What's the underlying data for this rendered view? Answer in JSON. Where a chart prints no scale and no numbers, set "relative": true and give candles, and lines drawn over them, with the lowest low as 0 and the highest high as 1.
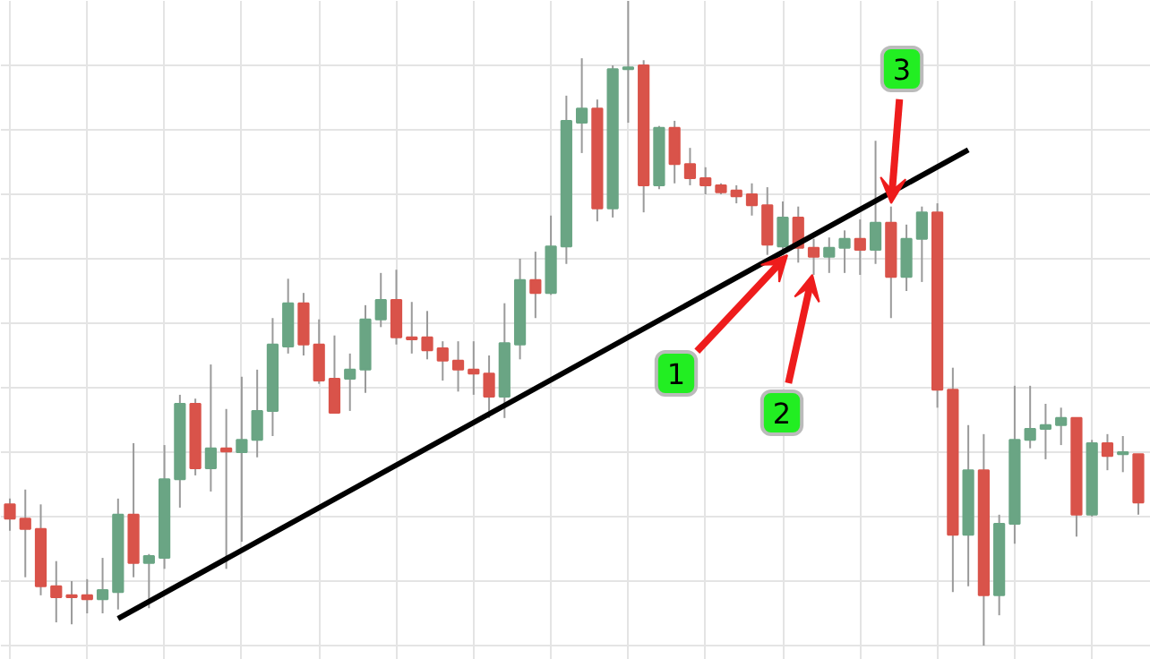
{
  "chart_data": {
    "type": "candlestick",
    "relative": true,
    "grid": true,
    "categories": [
      null,
      null,
      null,
      null,
      null,
      null,
      null,
      null,
      null,
      null,
      null,
      null,
      null,
      null,
      null,
      null,
      null,
      null,
      null,
      null,
      null,
      null,
      null,
      null,
      null,
      null,
      null,
      null,
      null,
      null,
      null,
      null,
      null,
      null,
      null,
      null,
      null,
      null,
      null,
      null,
      null,
      null,
      null,
      null,
      null,
      null,
      null,
      null,
      null,
      null,
      null,
      null,
      null,
      null,
      null,
      null,
      null,
      null,
      null,
      null,
      null,
      null,
      null,
      null,
      null,
      null,
      null,
      null,
      null,
      null,
      null,
      null,
      null,
      null
    ],
    "ohlc": [
      [
        0.219,
        0.228,
        0.178,
        0.197
      ],
      [
        0.197,
        0.242,
        0.106,
        0.181
      ],
      [
        0.181,
        0.219,
        0.078,
        0.092
      ],
      [
        0.092,
        0.131,
        0.036,
        0.075
      ],
      [
        0.078,
        0.1,
        0.033,
        0.075
      ],
      [
        0.078,
        0.103,
        0.05,
        0.072
      ],
      [
        0.072,
        0.136,
        0.05,
        0.086
      ],
      [
        0.083,
        0.228,
        0.056,
        0.203
      ],
      [
        0.203,
        0.314,
        0.106,
        0.128
      ],
      [
        0.128,
        0.142,
        0.058,
        0.139
      ],
      [
        0.136,
        0.311,
        0.119,
        0.258
      ],
      [
        0.258,
        0.389,
        0.214,
        0.375
      ],
      [
        0.375,
        0.383,
        0.264,
        0.275
      ],
      [
        0.275,
        0.436,
        0.239,
        0.306
      ],
      [
        0.306,
        0.367,
        0.119,
        0.301
      ],
      [
        0.3,
        0.417,
        0.161,
        0.319
      ],
      [
        0.319,
        0.428,
        0.292,
        0.364
      ],
      [
        0.364,
        0.508,
        0.325,
        0.467
      ],
      [
        0.464,
        0.569,
        0.453,
        0.531
      ],
      [
        0.531,
        0.547,
        0.45,
        0.467
      ],
      [
        0.467,
        0.506,
        0.406,
        0.411
      ],
      [
        0.414,
        0.481,
        0.361,
        0.361
      ],
      [
        0.414,
        0.453,
        0.364,
        0.428
      ],
      [
        0.428,
        0.528,
        0.392,
        0.506
      ],
      [
        0.506,
        0.578,
        0.494,
        0.536
      ],
      [
        0.536,
        0.583,
        0.467,
        0.478
      ],
      [
        0.478,
        0.533,
        0.453,
        0.475
      ],
      [
        0.478,
        0.519,
        0.444,
        0.458
      ],
      [
        0.461,
        0.472,
        0.411,
        0.442
      ],
      [
        0.442,
        0.472,
        0.394,
        0.428
      ],
      [
        0.428,
        0.472,
        0.389,
        0.422
      ],
      [
        0.422,
        0.45,
        0.353,
        0.386
      ],
      [
        0.386,
        0.531,
        0.353,
        0.469
      ],
      [
        0.467,
        0.6,
        0.444,
        0.567
      ],
      [
        0.567,
        0.611,
        0.508,
        0.547
      ],
      [
        0.547,
        0.667,
        0.544,
        0.619
      ],
      [
        0.619,
        0.853,
        0.592,
        0.814
      ],
      [
        0.811,
        0.911,
        0.764,
        0.833
      ],
      [
        0.833,
        0.847,
        0.658,
        0.678
      ],
      [
        0.678,
        0.9,
        0.664,
        0.894
      ],
      [
        0.894,
        1,
        0.811,
        0.897
      ],
      [
        0.9,
        0.908,
        0.672,
        0.714
      ],
      [
        0.714,
        0.806,
        0.708,
        0.803
      ],
      [
        0.803,
        0.814,
        0.717,
        0.747
      ],
      [
        0.747,
        0.772,
        0.714,
        0.725
      ],
      [
        0.725,
        0.742,
        0.7,
        0.714
      ],
      [
        0.714,
        0.717,
        0.7,
        0.703
      ],
      [
        0.706,
        0.714,
        0.686,
        0.697
      ],
      [
        0.7,
        0.717,
        0.667,
        0.683
      ],
      [
        0.683,
        0.711,
        0.606,
        0.622
      ],
      [
        0.619,
        0.689,
        0.606,
        0.664
      ],
      [
        0.664,
        0.681,
        0.594,
        0.617
      ],
      [
        0.617,
        0.631,
        0.575,
        0.603
      ],
      [
        0.603,
        0.633,
        0.578,
        0.617
      ],
      [
        0.617,
        0.644,
        0.578,
        0.631
      ],
      [
        0.631,
        0.661,
        0.575,
        0.614
      ],
      [
        0.614,
        0.783,
        0.592,
        0.656
      ],
      [
        0.656,
        0.681,
        0.508,
        0.572
      ],
      [
        0.572,
        0.653,
        0.55,
        0.631
      ],
      [
        0.631,
        0.681,
        0.564,
        0.672
      ],
      [
        0.672,
        0.686,
        0.369,
        0.397
      ],
      [
        0.397,
        0.431,
        0.083,
        0.172
      ],
      [
        0.172,
        0.342,
        0.092,
        0.272
      ],
      [
        0.272,
        0.328,
        0,
        0.078
      ],
      [
        0.078,
        0.203,
        0.047,
        0.189
      ],
      [
        0.189,
        0.403,
        0.158,
        0.319
      ],
      [
        0.319,
        0.403,
        0.306,
        0.336
      ],
      [
        0.336,
        0.375,
        0.289,
        0.342
      ],
      [
        0.342,
        0.369,
        0.311,
        0.353
      ],
      [
        0.353,
        0.353,
        0.169,
        0.203
      ],
      [
        0.203,
        0.319,
        0.2,
        0.314
      ],
      [
        0.314,
        0.328,
        0.272,
        0.294
      ],
      [
        0.297,
        0.325,
        0.269,
        0.3
      ],
      [
        0.297,
        0.297,
        0.203,
        0.222
      ]
    ],
    "colors": [
      "#d9534a",
      "#d9534a",
      "#d9534a",
      "#d9534a",
      "#d9534a",
      "#d9534a",
      "#6aa584",
      "#6aa584",
      "#d9534a",
      "#6aa584",
      "#6aa584",
      "#6aa584",
      "#d9534a",
      "#6aa584",
      "#d9534a",
      "#6aa584",
      "#6aa584",
      "#6aa584",
      "#6aa584",
      "#d9534a",
      "#d9534a",
      "#d9534a",
      "#6aa584",
      "#6aa584",
      "#6aa584",
      "#d9534a",
      "#d9534a",
      "#d9534a",
      "#d9534a",
      "#d9534a",
      "#d9534a",
      "#d9534a",
      "#6aa584",
      "#6aa584",
      "#d9534a",
      "#6aa584",
      "#6aa584",
      "#6aa584",
      "#d9534a",
      "#6aa584",
      "#6aa584",
      "#d9534a",
      "#6aa584",
      "#d9534a",
      "#d9534a",
      "#d9534a",
      "#d9534a",
      "#d9534a",
      "#d9534a",
      "#d9534a",
      "#6aa584",
      "#d9534a",
      "#d9534a",
      "#6aa584",
      "#6aa584",
      "#d9534a",
      "#6aa584",
      "#d9534a",
      "#6aa584",
      "#6aa584",
      "#d9534a",
      "#d9534a",
      "#6aa584",
      "#d9534a",
      "#6aa584",
      "#6aa584",
      "#6aa584",
      "#6aa584",
      "#6aa584",
      "#d9534a",
      "#6aa584",
      "#d9534a",
      "#6aa584",
      "#d9534a"
    ],
    "series": [
      {
        "type": "line",
        "values": [
          null,
          null,
          null,
          null,
          null,
          null,
          null,
          0.042,
          null,
          null,
          null,
          null,
          null,
          null,
          null,
          null,
          null,
          null,
          null,
          null,
          null,
          null,
          null,
          null,
          null,
          null,
          null,
          null,
          null,
          null,
          null,
          null,
          null,
          null,
          null,
          null,
          null,
          null,
          null,
          null,
          null,
          null,
          null,
          null,
          null,
          null,
          null,
          null,
          null,
          null,
          null,
          null,
          null,
          null,
          null,
          null,
          null,
          null,
          null,
          null,
          null,
          null,
          0.769,
          null,
          null,
          null,
          null,
          null,
          null,
          null,
          null,
          null,
          null,
          null
        ],
        "color": "#000000"
      }
    ],
    "annotations": [
      "1",
      "2",
      "3"
    ]
  }
}
